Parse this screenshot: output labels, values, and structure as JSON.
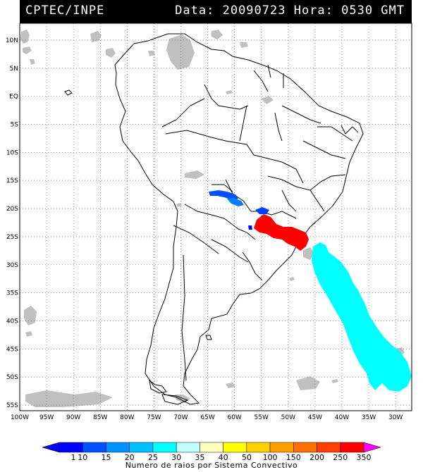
{
  "header": {
    "agency": "CPTEC/INPE",
    "datetime": "Data: 20090723 Hora: 0530 GMT"
  },
  "map": {
    "lon_range": [
      -100,
      -27
    ],
    "lat_range": [
      -56,
      13
    ],
    "lat_labels": [
      "10N",
      "5N",
      "EQ",
      "5S",
      "10S",
      "15S",
      "20S",
      "25S",
      "30S",
      "35S",
      "40S",
      "45S",
      "50S",
      "55S"
    ],
    "lat_values": [
      10,
      5,
      0,
      -5,
      -10,
      -15,
      -20,
      -25,
      -30,
      -35,
      -40,
      -45,
      -50,
      -55
    ],
    "lon_labels": [
      "100W",
      "95W",
      "90W",
      "85W",
      "80W",
      "75W",
      "70W",
      "65W",
      "60W",
      "55W",
      "50W",
      "45W",
      "40W",
      "35W",
      "30W"
    ],
    "lon_values": [
      -100,
      -95,
      -90,
      -85,
      -80,
      -75,
      -70,
      -65,
      -60,
      -55,
      -50,
      -45,
      -40,
      -35,
      -30
    ],
    "cloud_color": "#c0c0c0",
    "grid_style": "dotted"
  },
  "lightning_systems": [
    {
      "color": "#0000ff",
      "lon": -63.5,
      "lat": -18.5
    },
    {
      "color": "#0080ff",
      "lon": -60.5,
      "lat": -19.3
    },
    {
      "color": "#0040ff",
      "lon": -56.0,
      "lat": -20.8
    },
    {
      "color": "#ff0000",
      "lon": -51.0,
      "lat": -23.6
    },
    {
      "color": "#00ffff",
      "lon": -38.0,
      "lat": -40.0
    }
  ],
  "colorbar": {
    "labels": [
      "1",
      "10",
      "15",
      "20",
      "25",
      "30",
      "35",
      "40",
      "50",
      "100",
      "150",
      "200",
      "250",
      "350"
    ],
    "colors": [
      "#0000ff",
      "#0050ff",
      "#0090ff",
      "#00c0ff",
      "#00ffff",
      "#c0ffff",
      "#ffffc0",
      "#ffff00",
      "#ffd000",
      "#ffa000",
      "#ff7000",
      "#ff4000",
      "#ff0000"
    ],
    "low_end_color": "#0000ff",
    "high_end_color": "#ff00ff",
    "title": "Numero de raios por Sistema Convectivo"
  }
}
